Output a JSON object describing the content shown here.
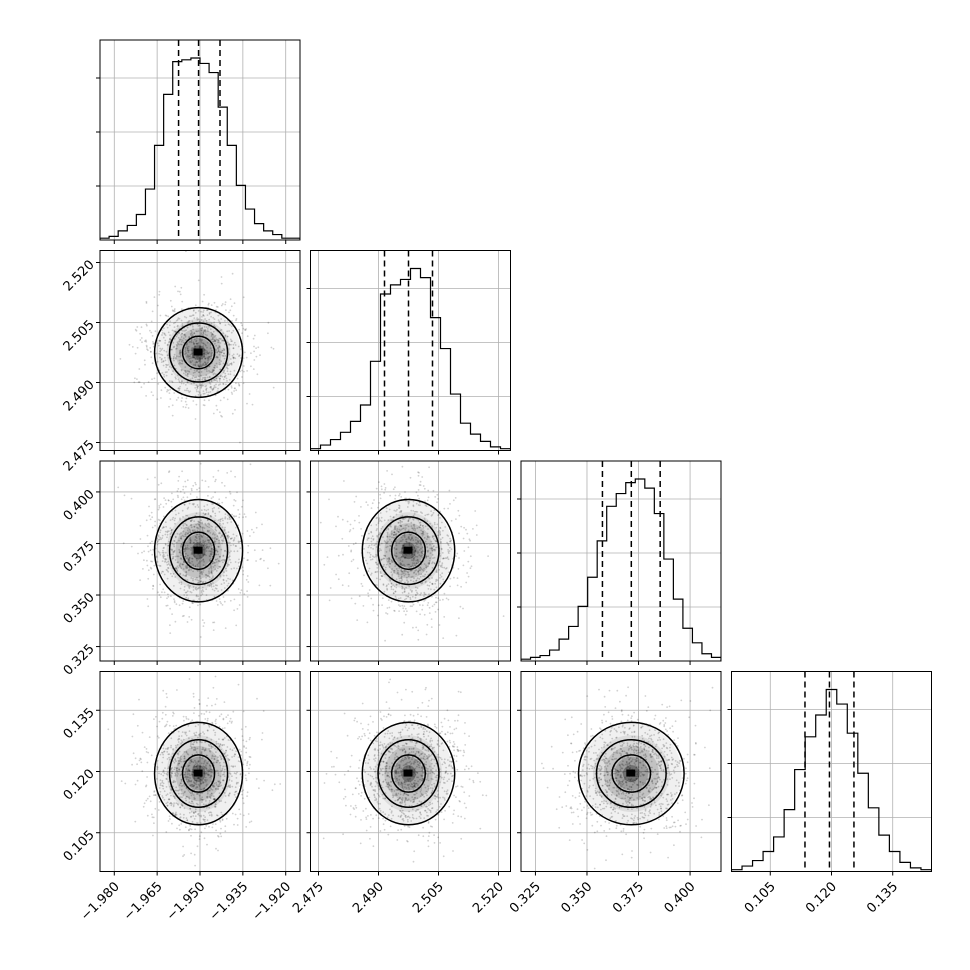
{
  "chart_data": {
    "type": "corner",
    "parameters": [
      {
        "range": [
          -1.985,
          -1.915
        ],
        "ticks": [
          "−1.980",
          "−1.965",
          "−1.950",
          "−1.935",
          "−1.920"
        ],
        "tick_values": [
          -1.98,
          -1.965,
          -1.95,
          -1.935,
          -1.92
        ],
        "histogram": [
          0.01,
          0.02,
          0.05,
          0.08,
          0.14,
          0.28,
          0.52,
          0.8,
          0.98,
          0.99,
          1.0,
          0.97,
          0.92,
          0.73,
          0.52,
          0.3,
          0.17,
          0.09,
          0.05,
          0.03,
          0.01,
          0.01
        ],
        "quantiles": [
          -1.9575,
          -1.9505,
          -1.943
        ]
      },
      {
        "range": [
          2.473,
          2.523
        ],
        "ticks": [
          "2.475",
          "2.490",
          "2.505",
          "2.520"
        ],
        "tick_values": [
          2.475,
          2.49,
          2.505,
          2.52
        ],
        "histogram": [
          0.01,
          0.03,
          0.06,
          0.1,
          0.16,
          0.25,
          0.49,
          0.86,
          0.91,
          0.94,
          1.0,
          0.95,
          0.73,
          0.56,
          0.31,
          0.15,
          0.09,
          0.05,
          0.02,
          0.01
        ],
        "quantiles": [
          2.4915,
          2.4975,
          2.5035
        ]
      },
      {
        "range": [
          0.318,
          0.415
        ],
        "ticks": [
          "0.325",
          "0.350",
          "0.375",
          "0.400"
        ],
        "tick_values": [
          0.325,
          0.35,
          0.375,
          0.4
        ],
        "histogram": [
          0.01,
          0.02,
          0.03,
          0.06,
          0.12,
          0.19,
          0.3,
          0.46,
          0.66,
          0.85,
          0.92,
          0.98,
          1.0,
          0.95,
          0.81,
          0.56,
          0.34,
          0.18,
          0.1,
          0.04,
          0.02
        ],
        "quantiles": [
          0.3575,
          0.3715,
          0.3855
        ]
      },
      {
        "range": [
          0.0955,
          0.1445
        ],
        "ticks": [
          "0.105",
          "0.120",
          "0.135"
        ],
        "tick_values": [
          0.105,
          0.12,
          0.135
        ],
        "histogram": [
          0.01,
          0.03,
          0.06,
          0.11,
          0.19,
          0.34,
          0.56,
          0.74,
          0.86,
          1.0,
          0.92,
          0.76,
          0.54,
          0.35,
          0.2,
          0.11,
          0.05,
          0.02,
          0.01
        ],
        "quantiles": [
          0.1135,
          0.1195,
          0.1255
        ]
      }
    ],
    "grid": true,
    "histogram_style": "step",
    "scatter_color": "#000000",
    "contour_color": "#000000",
    "quantile_style": "dashed"
  }
}
